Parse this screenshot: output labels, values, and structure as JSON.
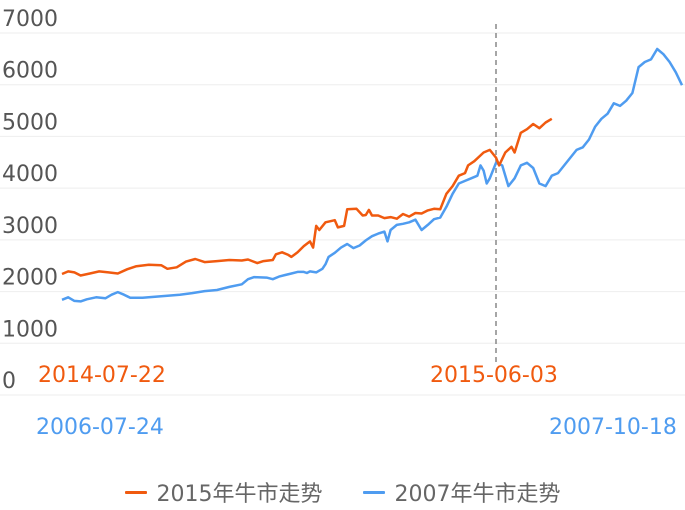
{
  "colors": {
    "orange": "#f05a0f",
    "blue": "#4f9cf0",
    "grid": "#eeeeee",
    "marker": "#888888"
  },
  "chart_data": {
    "type": "line",
    "title": "",
    "xlabel": "",
    "ylabel": "",
    "ylim": [
      0,
      7000
    ],
    "yticks": [
      "7000",
      "6000",
      "5000",
      "4000",
      "3000",
      "2000",
      "1000",
      "0"
    ],
    "grid": true,
    "legend_position": "bottom",
    "x_index_range": [
      0,
      1
    ],
    "orange_start_label": "2014-07-22",
    "orange_end_label": "2015-06-03",
    "blue_start_label": "2006-07-24",
    "blue_end_label": "2007-10-18",
    "marker_x": 0.7,
    "series": [
      {
        "name": "2015年牛市走势",
        "color": "#f05a0f",
        "points": [
          [
            0.0,
            2050
          ],
          [
            0.01,
            2100
          ],
          [
            0.02,
            2080
          ],
          [
            0.03,
            2020
          ],
          [
            0.045,
            2060
          ],
          [
            0.06,
            2100
          ],
          [
            0.075,
            2080
          ],
          [
            0.09,
            2060
          ],
          [
            0.105,
            2140
          ],
          [
            0.12,
            2200
          ],
          [
            0.14,
            2230
          ],
          [
            0.16,
            2220
          ],
          [
            0.17,
            2150
          ],
          [
            0.185,
            2180
          ],
          [
            0.2,
            2290
          ],
          [
            0.215,
            2340
          ],
          [
            0.23,
            2280
          ],
          [
            0.25,
            2300
          ],
          [
            0.27,
            2320
          ],
          [
            0.29,
            2310
          ],
          [
            0.3,
            2330
          ],
          [
            0.315,
            2260
          ],
          [
            0.325,
            2300
          ],
          [
            0.34,
            2320
          ],
          [
            0.345,
            2430
          ],
          [
            0.355,
            2470
          ],
          [
            0.365,
            2420
          ],
          [
            0.37,
            2380
          ],
          [
            0.38,
            2470
          ],
          [
            0.39,
            2590
          ],
          [
            0.4,
            2680
          ],
          [
            0.405,
            2560
          ],
          [
            0.41,
            2980
          ],
          [
            0.415,
            2900
          ],
          [
            0.425,
            3050
          ],
          [
            0.44,
            3090
          ],
          [
            0.445,
            2950
          ],
          [
            0.455,
            2980
          ],
          [
            0.46,
            3300
          ],
          [
            0.475,
            3310
          ],
          [
            0.485,
            3180
          ],
          [
            0.49,
            3190
          ],
          [
            0.495,
            3290
          ],
          [
            0.5,
            3180
          ],
          [
            0.51,
            3180
          ],
          [
            0.52,
            3130
          ],
          [
            0.53,
            3150
          ],
          [
            0.54,
            3120
          ],
          [
            0.55,
            3210
          ],
          [
            0.56,
            3160
          ],
          [
            0.57,
            3230
          ],
          [
            0.58,
            3220
          ],
          [
            0.59,
            3280
          ],
          [
            0.6,
            3310
          ],
          [
            0.61,
            3300
          ],
          [
            0.62,
            3600
          ],
          [
            0.63,
            3750
          ],
          [
            0.64,
            3950
          ],
          [
            0.65,
            4000
          ],
          [
            0.655,
            4150
          ],
          [
            0.665,
            4230
          ],
          [
            0.68,
            4400
          ],
          [
            0.69,
            4450
          ],
          [
            0.7,
            4300
          ],
          [
            0.705,
            4150
          ],
          [
            0.715,
            4400
          ],
          [
            0.725,
            4510
          ],
          [
            0.73,
            4400
          ],
          [
            0.74,
            4780
          ],
          [
            0.75,
            4850
          ],
          [
            0.76,
            4950
          ],
          [
            0.77,
            4870
          ],
          [
            0.78,
            4980
          ],
          [
            0.79,
            5050
          ]
        ]
      },
      {
        "name": "2007年牛市走势",
        "color": "#4f9cf0",
        "points": [
          [
            0.0,
            1550
          ],
          [
            0.01,
            1600
          ],
          [
            0.02,
            1530
          ],
          [
            0.03,
            1520
          ],
          [
            0.04,
            1560
          ],
          [
            0.055,
            1600
          ],
          [
            0.07,
            1580
          ],
          [
            0.08,
            1650
          ],
          [
            0.09,
            1700
          ],
          [
            0.1,
            1650
          ],
          [
            0.11,
            1590
          ],
          [
            0.13,
            1590
          ],
          [
            0.15,
            1610
          ],
          [
            0.17,
            1630
          ],
          [
            0.19,
            1650
          ],
          [
            0.21,
            1680
          ],
          [
            0.23,
            1720
          ],
          [
            0.25,
            1740
          ],
          [
            0.27,
            1800
          ],
          [
            0.29,
            1850
          ],
          [
            0.3,
            1950
          ],
          [
            0.31,
            1990
          ],
          [
            0.33,
            1980
          ],
          [
            0.34,
            1950
          ],
          [
            0.35,
            2000
          ],
          [
            0.36,
            2030
          ],
          [
            0.37,
            2060
          ],
          [
            0.38,
            2090
          ],
          [
            0.39,
            2090
          ],
          [
            0.395,
            2070
          ],
          [
            0.4,
            2100
          ],
          [
            0.41,
            2080
          ],
          [
            0.42,
            2150
          ],
          [
            0.425,
            2240
          ],
          [
            0.43,
            2380
          ],
          [
            0.44,
            2460
          ],
          [
            0.45,
            2560
          ],
          [
            0.46,
            2630
          ],
          [
            0.47,
            2550
          ],
          [
            0.48,
            2600
          ],
          [
            0.49,
            2700
          ],
          [
            0.5,
            2780
          ],
          [
            0.51,
            2830
          ],
          [
            0.52,
            2870
          ],
          [
            0.525,
            2680
          ],
          [
            0.53,
            2900
          ],
          [
            0.54,
            3000
          ],
          [
            0.55,
            3020
          ],
          [
            0.56,
            3050
          ],
          [
            0.57,
            3100
          ],
          [
            0.58,
            2900
          ],
          [
            0.59,
            3000
          ],
          [
            0.6,
            3110
          ],
          [
            0.61,
            3140
          ],
          [
            0.62,
            3350
          ],
          [
            0.63,
            3600
          ],
          [
            0.64,
            3800
          ],
          [
            0.65,
            3850
          ],
          [
            0.66,
            3900
          ],
          [
            0.67,
            3950
          ],
          [
            0.675,
            4150
          ],
          [
            0.68,
            4050
          ],
          [
            0.685,
            3800
          ],
          [
            0.69,
            3900
          ],
          [
            0.7,
            4200
          ],
          [
            0.71,
            4150
          ],
          [
            0.72,
            3750
          ],
          [
            0.73,
            3900
          ],
          [
            0.74,
            4150
          ],
          [
            0.75,
            4200
          ],
          [
            0.76,
            4100
          ],
          [
            0.77,
            3800
          ],
          [
            0.78,
            3750
          ],
          [
            0.79,
            3950
          ],
          [
            0.8,
            4000
          ],
          [
            0.81,
            4150
          ],
          [
            0.82,
            4300
          ],
          [
            0.83,
            4450
          ],
          [
            0.84,
            4500
          ],
          [
            0.85,
            4650
          ],
          [
            0.86,
            4900
          ],
          [
            0.87,
            5050
          ],
          [
            0.88,
            5150
          ],
          [
            0.89,
            5350
          ],
          [
            0.9,
            5300
          ],
          [
            0.91,
            5400
          ],
          [
            0.92,
            5550
          ],
          [
            0.93,
            6050
          ],
          [
            0.94,
            6150
          ],
          [
            0.95,
            6200
          ],
          [
            0.96,
            6400
          ],
          [
            0.97,
            6300
          ],
          [
            0.98,
            6150
          ],
          [
            0.99,
            5950
          ],
          [
            1.0,
            5700
          ]
        ]
      }
    ]
  }
}
